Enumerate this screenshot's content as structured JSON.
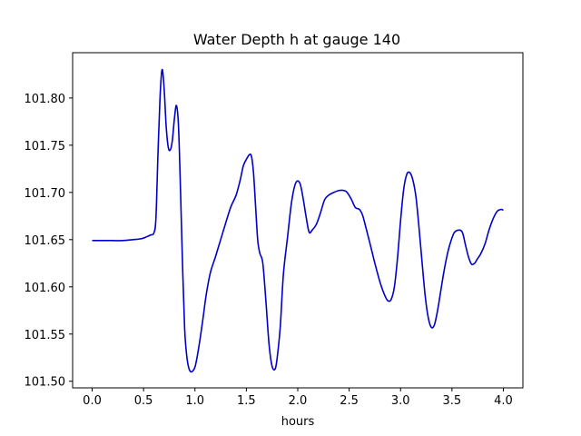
{
  "chart_data": {
    "type": "line",
    "title": "Water Depth h at gauge 140",
    "xlabel": "hours",
    "ylabel": "",
    "xlim": [
      -0.19,
      4.19
    ],
    "ylim": [
      101.493,
      101.848
    ],
    "xticks": [
      0.0,
      0.5,
      1.0,
      1.5,
      2.0,
      2.5,
      3.0,
      3.5,
      4.0
    ],
    "xtick_labels": [
      "0.0",
      "0.5",
      "1.0",
      "1.5",
      "2.0",
      "2.5",
      "3.0",
      "3.5",
      "4.0"
    ],
    "yticks": [
      101.5,
      101.55,
      101.6,
      101.65,
      101.7,
      101.75,
      101.8
    ],
    "ytick_labels": [
      "101.50",
      "101.55",
      "101.60",
      "101.65",
      "101.70",
      "101.75",
      "101.80"
    ],
    "grid": false,
    "legend": "none",
    "series": [
      {
        "color": "#0000cc",
        "x": [
          0.0,
          0.1,
          0.2,
          0.3,
          0.4,
          0.48,
          0.53,
          0.57,
          0.6,
          0.62,
          0.64,
          0.66,
          0.68,
          0.7,
          0.72,
          0.74,
          0.76,
          0.78,
          0.8,
          0.82,
          0.84,
          0.86,
          0.88,
          0.9,
          0.92,
          0.94,
          0.96,
          0.98,
          1.0,
          1.02,
          1.05,
          1.08,
          1.11,
          1.15,
          1.2,
          1.25,
          1.3,
          1.35,
          1.4,
          1.44,
          1.47,
          1.5,
          1.53,
          1.55,
          1.57,
          1.59,
          1.61,
          1.63,
          1.66,
          1.69,
          1.72,
          1.75,
          1.78,
          1.8,
          1.83,
          1.86,
          1.9,
          1.94,
          1.98,
          2.02,
          2.05,
          2.08,
          2.11,
          2.14,
          2.18,
          2.22,
          2.26,
          2.3,
          2.35,
          2.4,
          2.45,
          2.48,
          2.52,
          2.56,
          2.6,
          2.63,
          2.66,
          2.7,
          2.75,
          2.8,
          2.85,
          2.88,
          2.91,
          2.94,
          2.97,
          3.0,
          3.03,
          3.06,
          3.09,
          3.12,
          3.15,
          3.18,
          3.21,
          3.24,
          3.27,
          3.3,
          3.33,
          3.36,
          3.39,
          3.42,
          3.45,
          3.48,
          3.52,
          3.56,
          3.6,
          3.63,
          3.66,
          3.69,
          3.72,
          3.75,
          3.78,
          3.82,
          3.86,
          3.9,
          3.94,
          3.98,
          4.0
        ],
        "y": [
          101.649,
          101.649,
          101.649,
          101.649,
          101.65,
          101.651,
          101.653,
          101.655,
          101.657,
          101.672,
          101.74,
          101.8,
          101.83,
          101.81,
          101.77,
          101.748,
          101.745,
          101.755,
          101.778,
          101.792,
          101.77,
          101.7,
          101.62,
          101.555,
          101.527,
          101.514,
          101.51,
          101.511,
          101.515,
          101.525,
          101.545,
          101.568,
          101.592,
          101.615,
          101.632,
          101.65,
          101.668,
          101.685,
          101.697,
          101.713,
          101.728,
          101.735,
          101.74,
          101.738,
          101.72,
          101.685,
          101.65,
          101.636,
          101.625,
          101.585,
          101.54,
          101.516,
          101.513,
          101.525,
          101.558,
          101.613,
          101.652,
          101.69,
          101.71,
          101.71,
          101.695,
          101.675,
          101.658,
          101.66,
          101.666,
          101.678,
          101.692,
          101.697,
          101.7,
          101.702,
          101.702,
          101.7,
          101.693,
          101.684,
          101.682,
          101.676,
          101.664,
          101.647,
          101.625,
          101.605,
          101.59,
          101.585,
          101.587,
          101.6,
          101.63,
          101.67,
          101.703,
          101.719,
          101.721,
          101.713,
          101.695,
          101.662,
          101.625,
          101.59,
          101.567,
          101.557,
          101.56,
          101.575,
          101.595,
          101.615,
          101.632,
          101.645,
          101.657,
          101.66,
          101.658,
          101.645,
          101.632,
          101.624,
          101.625,
          101.63,
          101.635,
          101.645,
          101.66,
          101.672,
          101.68,
          101.682,
          101.681
        ]
      }
    ]
  }
}
